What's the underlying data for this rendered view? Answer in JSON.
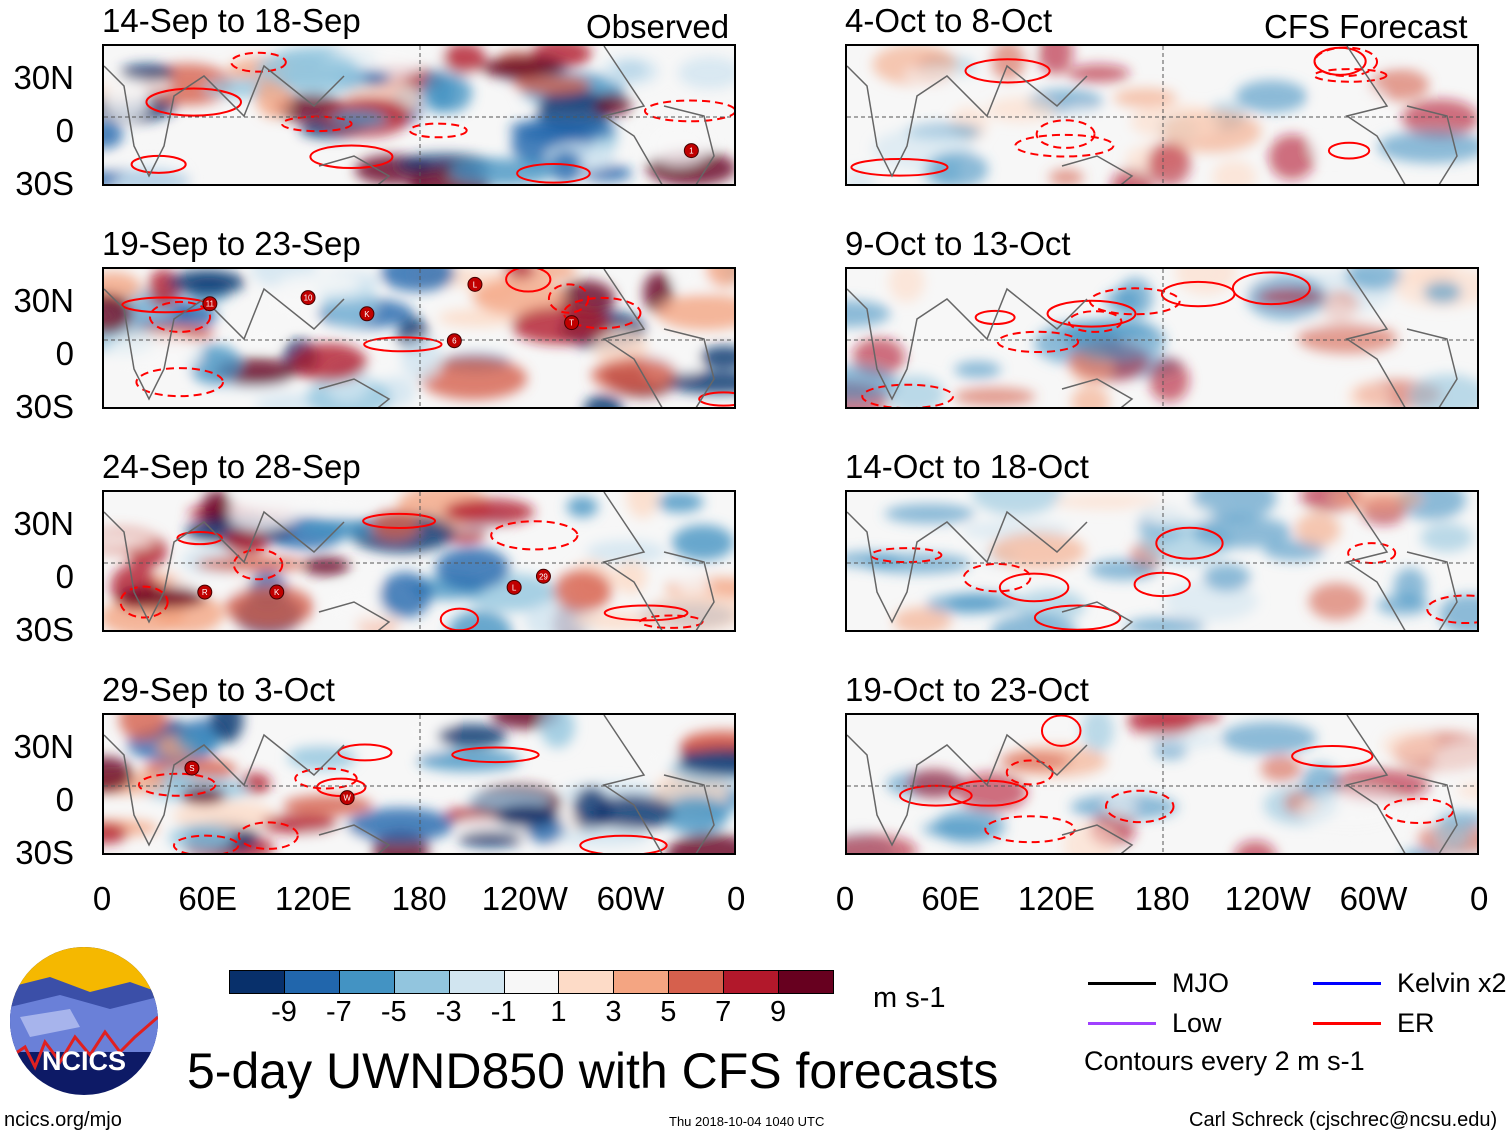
{
  "labels": {
    "observed": "Observed",
    "forecast": "CFS Forecast"
  },
  "latitude_ticks": [
    "30N",
    "0",
    "30S"
  ],
  "longitude_ticks": [
    "0",
    "60E",
    "120E",
    "180",
    "120W",
    "60W",
    "0"
  ],
  "observed_panels": [
    {
      "title": "14-Sep to 18-Sep",
      "storms": [
        "1"
      ]
    },
    {
      "title": "19-Sep to 23-Sep",
      "storms": [
        "6",
        "T",
        "10",
        "11",
        "K",
        "L"
      ]
    },
    {
      "title": "24-Sep to 28-Sep",
      "storms": [
        "29",
        "K",
        "L",
        "R"
      ]
    },
    {
      "title": "29-Sep to 3-Oct",
      "storms": [
        "W",
        "S"
      ]
    }
  ],
  "forecast_panels": [
    {
      "title": "4-Oct to 8-Oct"
    },
    {
      "title": "9-Oct to 13-Oct"
    },
    {
      "title": "14-Oct to 18-Oct"
    },
    {
      "title": "19-Oct to 23-Oct"
    }
  ],
  "colorbar": {
    "colors": [
      "#08306b",
      "#2166ac",
      "#4393c3",
      "#92c5de",
      "#d1e5f0",
      "#f7f7f7",
      "#fddbc7",
      "#f4a582",
      "#d6604d",
      "#b2182b",
      "#67001f"
    ],
    "ticks": [
      "-9",
      "-7",
      "-5",
      "-3",
      "-1",
      "1",
      "3",
      "5",
      "7",
      "9"
    ],
    "units": "m s-1"
  },
  "legend": {
    "items": [
      {
        "label": "MJO",
        "color": "#000000"
      },
      {
        "label": "Kelvin x2",
        "color": "#0000ff"
      },
      {
        "label": "Low",
        "color": "#a040ff"
      },
      {
        "label": "ER",
        "color": "#ff0000"
      }
    ],
    "contour_note": "Contours every 2 m s-1"
  },
  "logo_text": "NCICS",
  "main_title": "5-day UWND850 with CFS forecasts",
  "footer": {
    "url": "ncics.org/mjo",
    "timestamp": "Thu 2018-10-04 1040 UTC",
    "author": "Carl Schreck (cjschrec@ncsu.edu)"
  }
}
